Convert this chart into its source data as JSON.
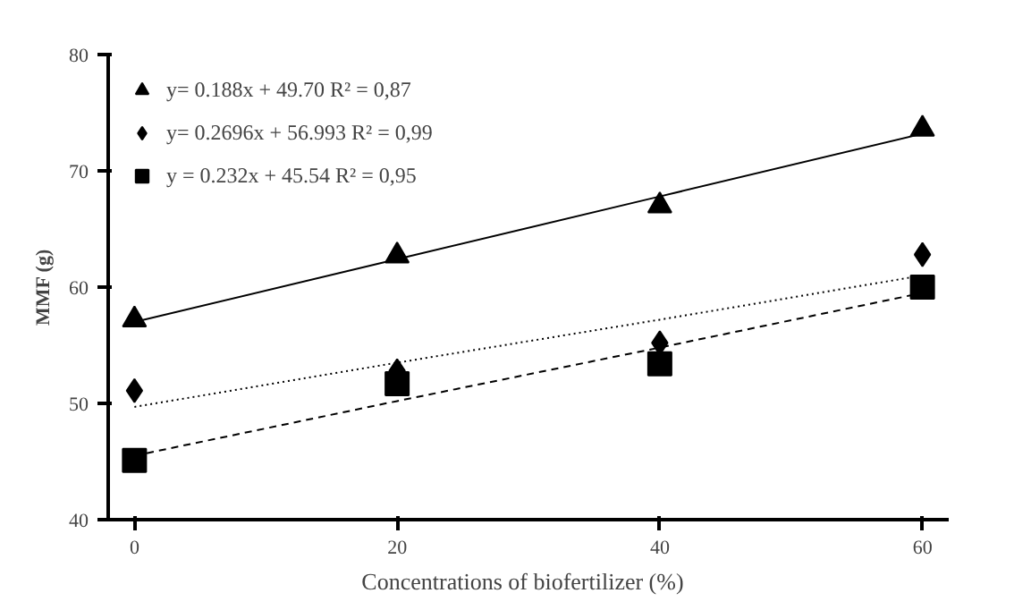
{
  "chart_data": {
    "type": "scatter",
    "xlabel": "Concentrations of  biofertilizer  (%)",
    "ylabel": "MMF (g)",
    "x": [
      0,
      20,
      40,
      60
    ],
    "xlim": [
      -2,
      62
    ],
    "xticks": [
      0,
      20,
      40,
      60
    ],
    "ylim": [
      40,
      80
    ],
    "yticks": [
      40,
      50,
      60,
      70,
      80
    ],
    "grid": false,
    "legend": "top left",
    "series": [
      {
        "name": "y= 0.188x + 49.70 R² = 0,87",
        "marker": "triangle",
        "color": "#000000",
        "values": [
          57.2,
          62.7,
          67.0,
          73.6
        ]
      },
      {
        "name": "y= 0.2696x + 56.993 R² = 0,99",
        "marker": "diamond",
        "color": "#000000",
        "values": [
          51.1,
          52.8,
          55.2,
          62.8
        ]
      },
      {
        "name": "y = 0.232x + 45.54 R² = 0,95",
        "marker": "square",
        "color": "#000000",
        "values": [
          45.1,
          51.7,
          53.4,
          60.0
        ]
      },
      {
        "type": "line",
        "line_style": "solid",
        "color": "#000000",
        "values": [
          57.0,
          62.4,
          67.8,
          73.2
        ]
      },
      {
        "type": "line",
        "line_style": "dotted",
        "color": "#000000",
        "values": [
          49.7,
          53.5,
          57.2,
          61.0
        ]
      },
      {
        "type": "line",
        "line_style": "dashed",
        "color": "#000000",
        "values": [
          45.5,
          50.2,
          54.8,
          59.5
        ]
      }
    ]
  }
}
